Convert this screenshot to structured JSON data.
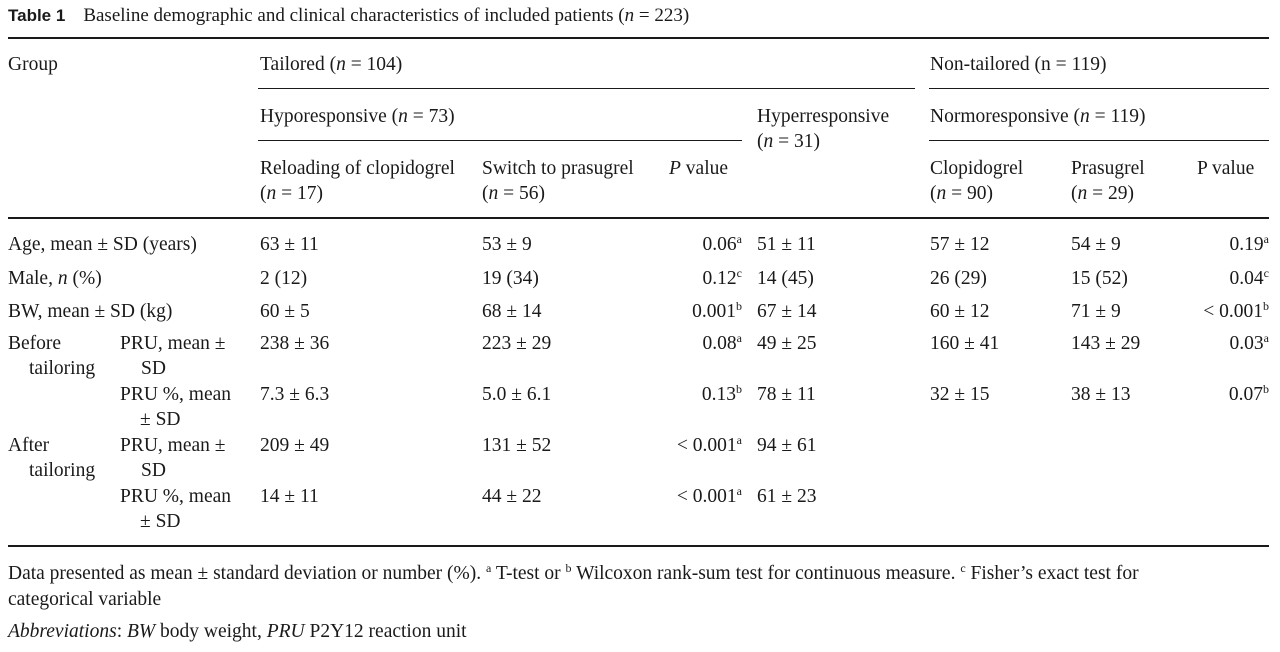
{
  "caption": {
    "label": "Table 1",
    "text_before_n": "Baseline demographic and clinical characteristics of included patients (",
    "n_symbol": "n",
    "text_after_n": " = 223)"
  },
  "header": {
    "group": "Group",
    "tailored": {
      "label": "Tailored (",
      "n": "n",
      "rest": " = 104)"
    },
    "non_tailored": "Non-tailored (n = 119)",
    "hypo": {
      "label": "Hyporesponsive (",
      "n": "n",
      "rest": " = 73)"
    },
    "hyper": {
      "line1": "Hyperresponsive",
      "line2_open": "(",
      "n": "n",
      "line2_rest": " = 31)"
    },
    "normo": {
      "label": "Normoresponsive (",
      "n": "n",
      "rest": " = 119)"
    },
    "reload": {
      "line1": "Reloading of clopidogrel",
      "open": "(",
      "n": "n",
      "rest": " = 17)"
    },
    "switch": {
      "line1": "Switch to prasugrel",
      "open": "(",
      "n": "n",
      "rest": " = 56)"
    },
    "pvalue_left": {
      "p": "P",
      "rest": " value"
    },
    "clopi": {
      "line1": "Clopidogrel",
      "open": "(",
      "n": "n",
      "rest": " = 90)"
    },
    "prasu": {
      "line1": "Prasugrel",
      "open": "(",
      "n": "n",
      "rest": " = 29)"
    },
    "pvalue_right": "P value"
  },
  "rows": {
    "age": {
      "label": "Age, mean ± SD (years)",
      "c1": "63 ± 11",
      "c2": "53 ± 9",
      "p1": "0.06",
      "p1_sup": "a",
      "c3": "51 ± 11",
      "c4": "57 ± 12",
      "c5": "54 ± 9",
      "p2": "0.19",
      "p2_sup": "a"
    },
    "male": {
      "label_a": "Male, ",
      "label_n": "n",
      "label_b": " (%)",
      "c1": "2 (12)",
      "c2": "19 (34)",
      "p1": "0.12",
      "p1_sup": "c",
      "c3": "14 (45)",
      "c4": "26 (29)",
      "c5": "15 (52)",
      "p2": "0.04",
      "p2_sup": "c"
    },
    "bw": {
      "label": "BW, mean ± SD (kg)",
      "c1": "60 ± 5",
      "c2": "68 ± 14",
      "p1": "0.001",
      "p1_sup": "b",
      "c3": "67 ± 14",
      "c4": "60 ± 12",
      "c5": "71 ± 9",
      "p2": "< 0.001",
      "p2_sup": "b"
    },
    "before": {
      "group_line1": "Before",
      "group_line2": "tailoring",
      "pru": {
        "line1": "PRU, mean ±",
        "line2": "SD",
        "c1": "238 ± 36",
        "c2": "223 ± 29",
        "p1": "0.08",
        "p1_sup": "a",
        "c3": "49 ± 25",
        "c4": "160 ± 41",
        "c5": "143 ± 29",
        "p2": "0.03",
        "p2_sup": "a"
      },
      "pru_pct": {
        "line1": "PRU %, mean",
        "line2": "± SD",
        "c1": "7.3 ± 6.3",
        "c2": "5.0 ± 6.1",
        "p1": "0.13",
        "p1_sup": "b",
        "c3": "78 ± 11",
        "c4": "32 ± 15",
        "c5": "38 ± 13",
        "p2": "0.07",
        "p2_sup": "b"
      }
    },
    "after": {
      "group_line1": "After",
      "group_line2": "tailoring",
      "pru": {
        "line1": "PRU, mean ±",
        "line2": "SD",
        "c1": "209 ± 49",
        "c2": "131 ± 52",
        "p1": "< 0.001",
        "p1_sup": "a",
        "c3": "94 ± 61"
      },
      "pru_pct": {
        "line1": "PRU %, mean",
        "line2": "± SD",
        "c1": "14 ± 11",
        "c2": "44 ± 22",
        "p1": "< 0.001",
        "p1_sup": "a",
        "c3": "61 ± 23"
      }
    }
  },
  "footnote": {
    "line1_a": "Data presented as mean ± standard deviation or number (%). ",
    "sup_a": "a",
    "line1_b": " T-test or ",
    "sup_b": "b",
    "line1_c": " Wilcoxon rank-sum test for continuous measure. ",
    "sup_c": "c",
    "line1_d": " Fisher’s exact test for",
    "line2": "categorical variable",
    "abbr_label": "Abbreviations",
    "abbr_bw_term": "BW",
    "abbr_bw_def": " body weight, ",
    "abbr_pru_term": "PRU",
    "abbr_pru_def": " P2Y12 reaction unit"
  }
}
